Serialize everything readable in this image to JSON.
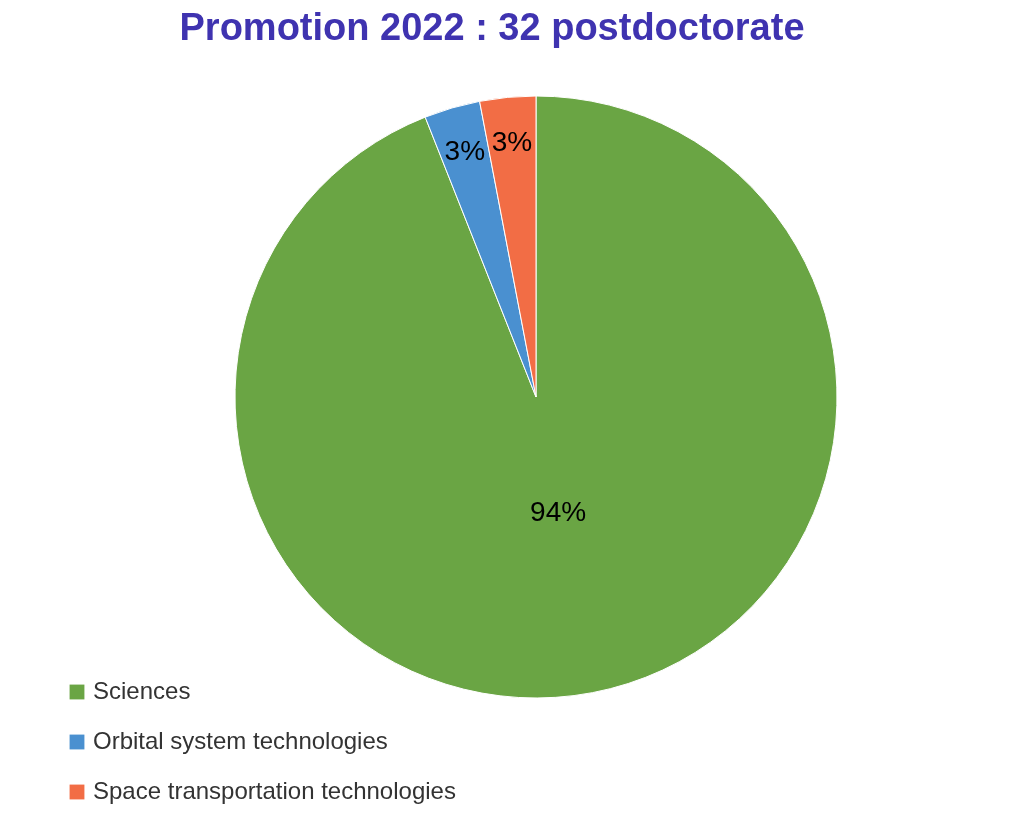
{
  "chart_data": {
    "type": "pie",
    "title": "Promotion 2022 : 32 postdoctorate",
    "categories": [
      "Sciences",
      "Orbital system technologies",
      "Space transportation technologies"
    ],
    "values": [
      94,
      3,
      3
    ],
    "colors": [
      "#6aa544",
      "#4a90d0",
      "#f26d45"
    ],
    "value_labels": [
      "94%",
      "3%",
      "3%"
    ],
    "legend": "bottom left"
  }
}
